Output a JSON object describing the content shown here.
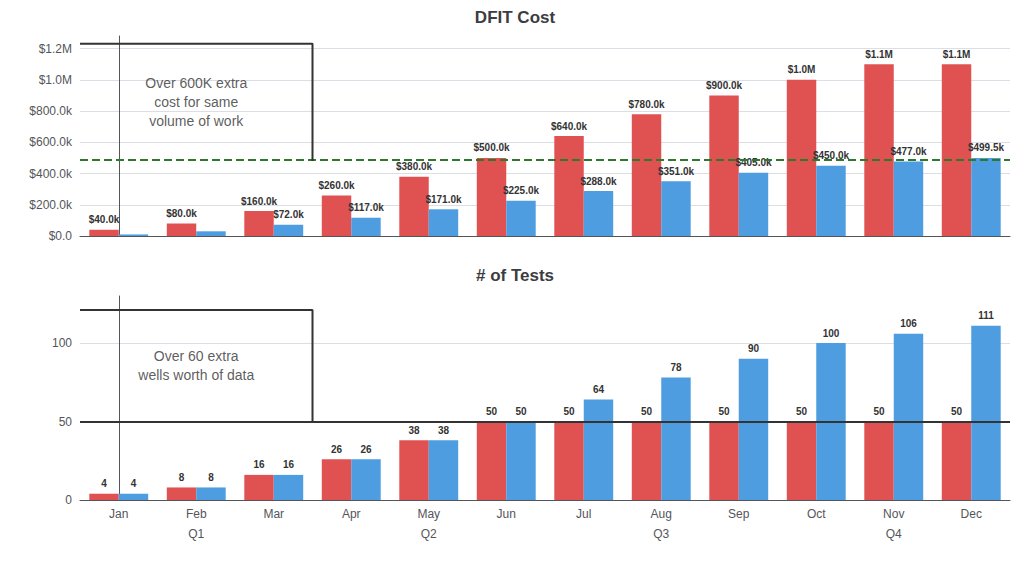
{
  "chart_data": [
    {
      "type": "bar",
      "title": "DFIT Cost",
      "categories": [
        "Jan",
        "Feb",
        "Mar",
        "Apr",
        "May",
        "Jun",
        "Jul",
        "Aug",
        "Sep",
        "Oct",
        "Nov",
        "Dec"
      ],
      "series": [
        {
          "color": "#e05252",
          "values": [
            40000,
            80000,
            160000,
            260000,
            380000,
            500000,
            640000,
            780000,
            900000,
            1000000,
            1100000,
            1100000
          ],
          "value_labels": [
            "$40.0k",
            "$80.0k",
            "$160.0k",
            "$260.0k",
            "$380.0k",
            "$500.0k",
            "$640.0k",
            "$780.0k",
            "$900.0k",
            "$1.0M",
            "$1.1M",
            "$1.1M"
          ]
        },
        {
          "color": "#4d9de0",
          "values": [
            10000,
            30000,
            72000,
            117000,
            171000,
            225000,
            288000,
            351000,
            405000,
            450000,
            477000,
            499500
          ],
          "value_labels": [
            null,
            null,
            "$72.0k",
            "$117.0k",
            "$171.0k",
            "$225.0k",
            "$288.0k",
            "$351.0k",
            "$405.0k",
            "$450.0k",
            "$477.0k",
            "$499.5k"
          ]
        }
      ],
      "ylim": [
        0,
        1280000
      ],
      "yticks": [
        {
          "value": 0,
          "label": "$0.0"
        },
        {
          "value": 200000,
          "label": "$200.0k"
        },
        {
          "value": 400000,
          "label": "$400.0k"
        },
        {
          "value": 600000,
          "label": "$600.0k"
        },
        {
          "value": 800000,
          "label": "$800.0k"
        },
        {
          "value": 1000000,
          "label": "$1.0M"
        },
        {
          "value": 1200000,
          "label": "$1.2M"
        }
      ],
      "grid": true,
      "data_labels": true,
      "tick_labels": "y",
      "reference_lines": [
        {
          "value": 490000,
          "color": "#2d7a2d",
          "line_style": "dashed"
        }
      ],
      "annotations": [
        {
          "text": "Over 600K extra\ncost for same\nvolume of work",
          "bracket": {
            "top": 1230000,
            "bottom": 480000,
            "until": "Apr"
          }
        }
      ]
    },
    {
      "type": "bar",
      "title": "# of Tests",
      "categories": [
        "Jan",
        "Feb",
        "Mar",
        "Apr",
        "May",
        "Jun",
        "Jul",
        "Aug",
        "Sep",
        "Oct",
        "Nov",
        "Dec"
      ],
      "series": [
        {
          "color": "#e05252",
          "values": [
            4,
            8,
            16,
            26,
            38,
            50,
            50,
            50,
            50,
            50,
            50,
            50
          ]
        },
        {
          "color": "#4d9de0",
          "values": [
            4,
            8,
            16,
            26,
            38,
            50,
            64,
            78,
            90,
            100,
            106,
            111
          ]
        }
      ],
      "ylim": [
        0,
        130
      ],
      "yticks": [
        0,
        50,
        100
      ],
      "grid": true,
      "data_labels": true,
      "reference_lines": [
        {
          "value": 50,
          "line_style": "solid"
        }
      ],
      "category_groups": [
        {
          "label": "Q1",
          "center": "Feb"
        },
        {
          "label": "Q2",
          "center": "May"
        },
        {
          "label": "Q3",
          "center": "Aug"
        },
        {
          "label": "Q4",
          "center": "Nov"
        }
      ],
      "annotations": [
        {
          "text": "Over 60 extra\nwells worth of data",
          "bracket": {
            "top": 121,
            "bottom": 50,
            "until": "Apr"
          }
        }
      ]
    }
  ]
}
